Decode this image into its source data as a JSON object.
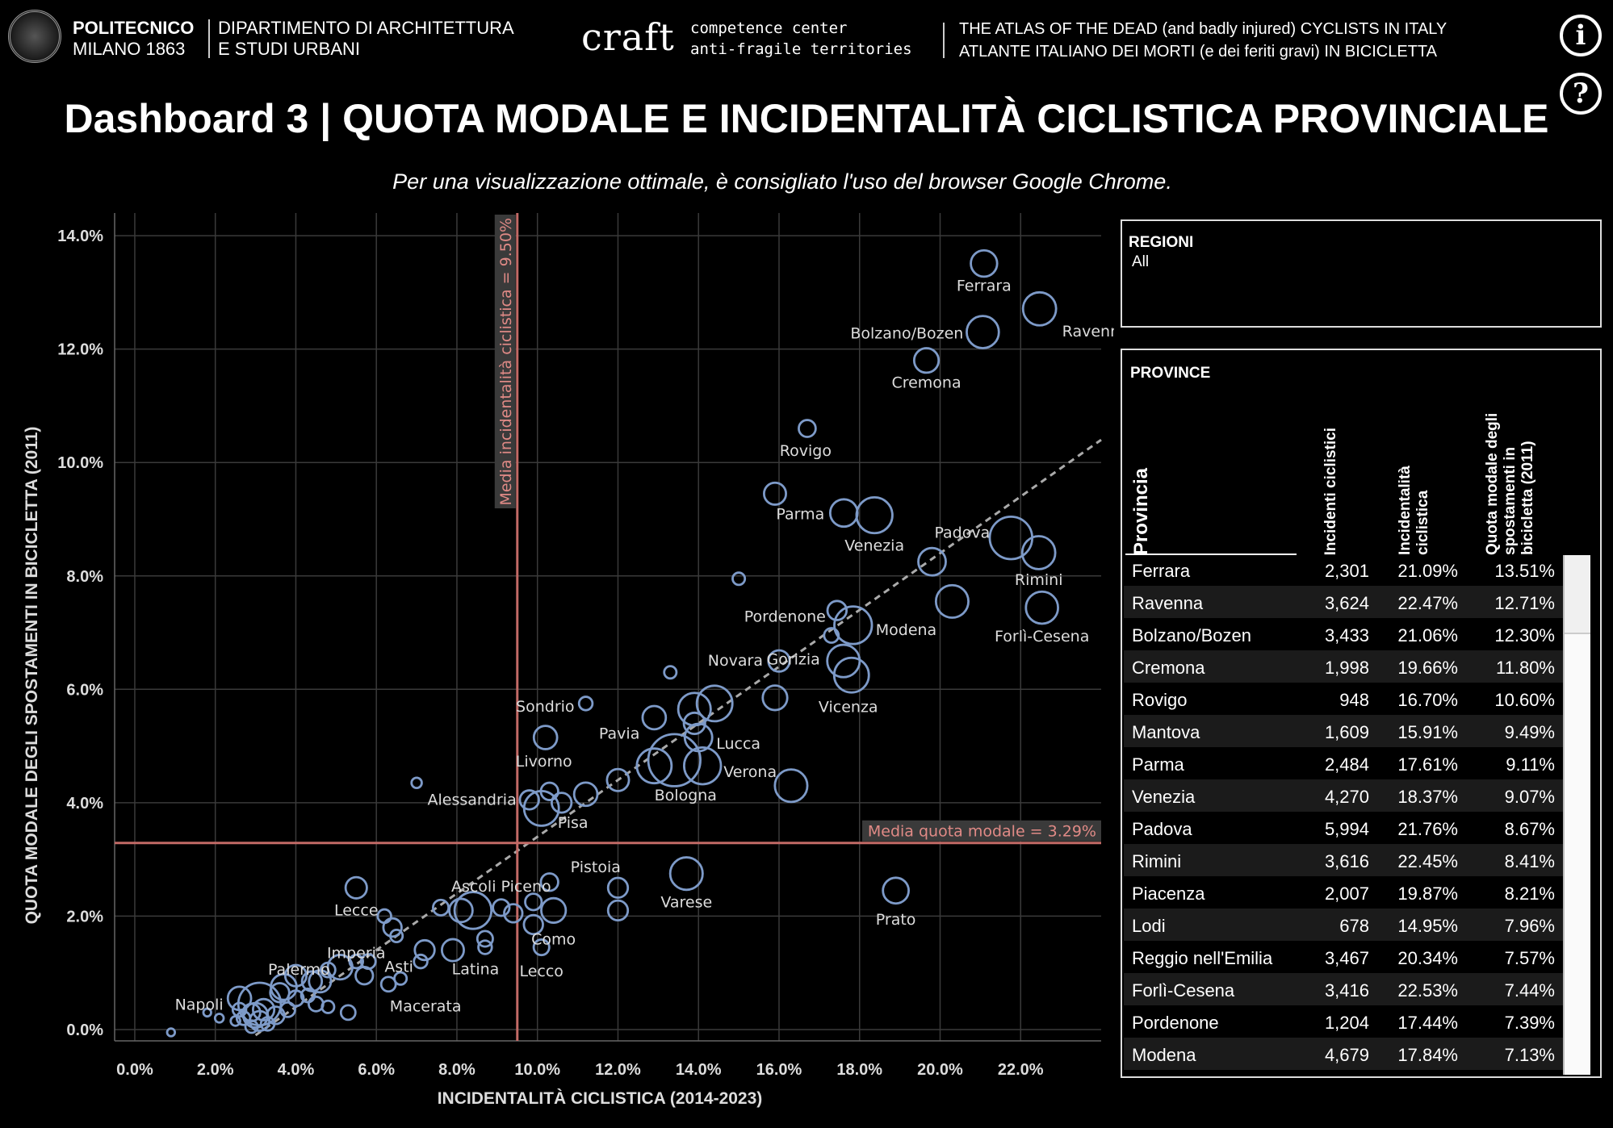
{
  "header": {
    "polimi_line1": "POLITECNICO",
    "polimi_line2": "MILANO 1863",
    "dept_line1": "DIPARTIMENTO DI ARCHITETTURA",
    "dept_line2": "E STUDI URBANI",
    "craft": "craft",
    "cc_line1": "competence center",
    "cc_line2": "anti-fragile territories",
    "atlas_line1": "THE ATLAS OF THE DEAD (and badly injured) CYCLISTS IN ITALY",
    "atlas_line2": "ATLANTE ITALIANO DEI MORTI (e dei feriti gravi) IN BICICLETTA",
    "info_glyph": "i",
    "help_glyph": "?"
  },
  "title": "Dashboard 3 | QUOTA MODALE E INCIDENTALITÀ CICLISTICA PROVINCIALE",
  "subtitle": "Per una visualizzazione ottimale, è consigliato l'uso del browser Google Chrome.",
  "chart_data": {
    "type": "scatter",
    "xlabel": "INCIDENTALITÀ CICLISTICA (2014-2023)",
    "ylabel": "QUOTA MODALE DEGLI SPOSTAMENTI IN BICICLETTA (2011)",
    "xlim": [
      -0.5,
      24
    ],
    "ylim": [
      -0.2,
      14.4
    ],
    "xticks": [
      "0.0%",
      "2.0%",
      "4.0%",
      "6.0%",
      "8.0%",
      "10.0%",
      "12.0%",
      "14.0%",
      "16.0%",
      "18.0%",
      "20.0%",
      "22.0%"
    ],
    "yticks": [
      "0.0%",
      "2.0%",
      "4.0%",
      "6.0%",
      "8.0%",
      "10.0%",
      "12.0%",
      "14.0%"
    ],
    "grid": true,
    "ref_x": {
      "value": 9.5,
      "label": "Media incidentalità ciclistica = 9.50%"
    },
    "ref_y": {
      "value": 3.29,
      "label": "Media quota modale = 3.29%"
    },
    "trend": {
      "x": [
        3.0,
        24.0
      ],
      "y": [
        -0.1,
        10.4
      ]
    },
    "labeled_points": [
      {
        "name": "Ferrara",
        "x": 21.09,
        "y": 13.51,
        "size": 2301
      },
      {
        "name": "Ravenna",
        "x": 22.47,
        "y": 12.71,
        "size": 3624
      },
      {
        "name": "Bolzano/Bozen",
        "x": 21.06,
        "y": 12.3,
        "size": 3433
      },
      {
        "name": "Cremona",
        "x": 19.66,
        "y": 11.8,
        "size": 1998
      },
      {
        "name": "Rovigo",
        "x": 16.7,
        "y": 10.6,
        "size": 948
      },
      {
        "name": "Parma",
        "x": 17.61,
        "y": 9.11,
        "size": 2484
      },
      {
        "name": "Venezia",
        "x": 18.37,
        "y": 9.07,
        "size": 4270
      },
      {
        "name": "Padova",
        "x": 21.76,
        "y": 8.67,
        "size": 5994
      },
      {
        "name": "Rimini",
        "x": 22.45,
        "y": 8.41,
        "size": 3616
      },
      {
        "name": "Forlì-Cesena",
        "x": 22.53,
        "y": 7.44,
        "size": 3416
      },
      {
        "name": "Pordenone",
        "x": 17.44,
        "y": 7.39,
        "size": 1204
      },
      {
        "name": "Modena",
        "x": 17.84,
        "y": 7.13,
        "size": 4679
      },
      {
        "name": "Gorizia",
        "x": 17.3,
        "y": 6.95,
        "size": 700
      },
      {
        "name": "Novara",
        "x": 16.0,
        "y": 6.5,
        "size": 1500
      },
      {
        "name": "Vicenza",
        "x": 17.8,
        "y": 6.25,
        "size": 4000
      },
      {
        "name": "Sondrio",
        "x": 11.2,
        "y": 5.75,
        "size": 600
      },
      {
        "name": "Pavia",
        "x": 12.9,
        "y": 5.5,
        "size": 1800
      },
      {
        "name": "Lucca",
        "x": 14.0,
        "y": 5.15,
        "size": 2500
      },
      {
        "name": "Livorno",
        "x": 10.2,
        "y": 5.15,
        "size": 1800
      },
      {
        "name": "Verona",
        "x": 14.1,
        "y": 4.65,
        "size": 4500
      },
      {
        "name": "Bologna",
        "x": 13.4,
        "y": 4.75,
        "size": 9000
      },
      {
        "name": "Alessandria",
        "x": 9.8,
        "y": 4.05,
        "size": 1200
      },
      {
        "name": "Pisa",
        "x": 10.1,
        "y": 3.9,
        "size": 4000
      },
      {
        "name": "Pistoia",
        "x": 10.3,
        "y": 2.6,
        "size": 1000
      },
      {
        "name": "Varese",
        "x": 13.7,
        "y": 2.75,
        "size": 3500
      },
      {
        "name": "Prato",
        "x": 18.9,
        "y": 2.45,
        "size": 2200
      },
      {
        "name": "Ascoli Piceno",
        "x": 9.1,
        "y": 2.15,
        "size": 900
      },
      {
        "name": "Lecce",
        "x": 5.5,
        "y": 2.5,
        "size": 1500
      },
      {
        "name": "Como",
        "x": 10.4,
        "y": 2.1,
        "size": 2000
      },
      {
        "name": "Lecco",
        "x": 10.1,
        "y": 1.45,
        "size": 800
      },
      {
        "name": "Imperia",
        "x": 5.5,
        "y": 1.2,
        "size": 600
      },
      {
        "name": "Latina",
        "x": 7.9,
        "y": 1.4,
        "size": 1600
      },
      {
        "name": "Asti",
        "x": 6.6,
        "y": 0.9,
        "size": 500
      },
      {
        "name": "Palermo",
        "x": 4.6,
        "y": 0.85,
        "size": 1600
      },
      {
        "name": "Macerata",
        "x": 6.3,
        "y": 0.8,
        "size": 700
      },
      {
        "name": "Napoli",
        "x": 2.6,
        "y": 0.55,
        "size": 1800
      }
    ],
    "other_points": [
      {
        "x": 15.0,
        "y": 7.95,
        "size": 500
      },
      {
        "x": 13.3,
        "y": 6.3,
        "size": 500
      },
      {
        "x": 15.9,
        "y": 9.45,
        "size": 1600
      },
      {
        "x": 19.8,
        "y": 8.25,
        "size": 2500
      },
      {
        "x": 20.3,
        "y": 7.55,
        "size": 3500
      },
      {
        "x": 17.6,
        "y": 6.5,
        "size": 3500
      },
      {
        "x": 15.9,
        "y": 5.85,
        "size": 2000
      },
      {
        "x": 13.9,
        "y": 5.65,
        "size": 3500
      },
      {
        "x": 14.4,
        "y": 5.75,
        "size": 4200
      },
      {
        "x": 13.9,
        "y": 5.4,
        "size": 1500
      },
      {
        "x": 12.9,
        "y": 4.65,
        "size": 4000
      },
      {
        "x": 16.3,
        "y": 4.3,
        "size": 3500
      },
      {
        "x": 12.0,
        "y": 4.4,
        "size": 1600
      },
      {
        "x": 11.2,
        "y": 4.15,
        "size": 1800
      },
      {
        "x": 10.6,
        "y": 4.0,
        "size": 1300
      },
      {
        "x": 10.3,
        "y": 4.2,
        "size": 1000
      },
      {
        "x": 7.0,
        "y": 4.35,
        "size": 350
      },
      {
        "x": 12.0,
        "y": 2.5,
        "size": 1300
      },
      {
        "x": 12.0,
        "y": 2.1,
        "size": 1300
      },
      {
        "x": 9.4,
        "y": 2.05,
        "size": 1100
      },
      {
        "x": 9.9,
        "y": 2.25,
        "size": 900
      },
      {
        "x": 9.9,
        "y": 1.85,
        "size": 1200
      },
      {
        "x": 8.4,
        "y": 2.1,
        "size": 4500
      },
      {
        "x": 8.1,
        "y": 2.1,
        "size": 1800
      },
      {
        "x": 7.6,
        "y": 2.15,
        "size": 800
      },
      {
        "x": 8.7,
        "y": 1.6,
        "size": 800
      },
      {
        "x": 8.7,
        "y": 1.45,
        "size": 600
      },
      {
        "x": 6.2,
        "y": 2.0,
        "size": 600
      },
      {
        "x": 6.4,
        "y": 1.8,
        "size": 1100
      },
      {
        "x": 6.5,
        "y": 1.65,
        "size": 500
      },
      {
        "x": 7.2,
        "y": 1.4,
        "size": 1300
      },
      {
        "x": 7.1,
        "y": 1.2,
        "size": 600
      },
      {
        "x": 5.8,
        "y": 1.2,
        "size": 700
      },
      {
        "x": 5.7,
        "y": 0.95,
        "size": 1000
      },
      {
        "x": 5.1,
        "y": 1.1,
        "size": 2000
      },
      {
        "x": 4.8,
        "y": 1.05,
        "size": 700
      },
      {
        "x": 4.4,
        "y": 0.85,
        "size": 1300
      },
      {
        "x": 4.0,
        "y": 0.95,
        "size": 1500
      },
      {
        "x": 3.7,
        "y": 0.75,
        "size": 2200
      },
      {
        "x": 3.6,
        "y": 0.65,
        "size": 1200
      },
      {
        "x": 4.0,
        "y": 0.55,
        "size": 800
      },
      {
        "x": 4.5,
        "y": 0.45,
        "size": 700
      },
      {
        "x": 4.3,
        "y": 0.6,
        "size": 600
      },
      {
        "x": 4.8,
        "y": 0.4,
        "size": 500
      },
      {
        "x": 3.8,
        "y": 0.35,
        "size": 700
      },
      {
        "x": 5.3,
        "y": 0.3,
        "size": 700
      },
      {
        "x": 3.1,
        "y": 0.45,
        "size": 6000
      },
      {
        "x": 3.0,
        "y": 0.25,
        "size": 2000
      },
      {
        "x": 3.1,
        "y": 0.15,
        "size": 1300
      },
      {
        "x": 3.5,
        "y": 0.25,
        "size": 1000
      },
      {
        "x": 3.3,
        "y": 0.1,
        "size": 600
      },
      {
        "x": 2.9,
        "y": 0.05,
        "size": 500
      },
      {
        "x": 2.7,
        "y": 0.2,
        "size": 600
      },
      {
        "x": 2.6,
        "y": 0.35,
        "size": 600
      },
      {
        "x": 2.5,
        "y": 0.15,
        "size": 300
      },
      {
        "x": 2.1,
        "y": 0.2,
        "size": 250
      },
      {
        "x": 1.8,
        "y": 0.3,
        "size": 200
      },
      {
        "x": 0.9,
        "y": -0.05,
        "size": 200
      },
      {
        "x": 3.2,
        "y": 0.35,
        "size": 1500
      },
      {
        "x": 2.9,
        "y": 0.3,
        "size": 1000
      }
    ]
  },
  "regioni": {
    "title": "REGIONI",
    "value": "All"
  },
  "province": {
    "title": "PROVINCE",
    "headers": [
      "Provincia",
      "Incidenti ciclistici",
      "Incidentalità ciclistica",
      "Quota modale degli spostamenti in bicicletta (2011)"
    ],
    "rows": [
      [
        "Ferrara",
        "2,301",
        "21.09%",
        "13.51%"
      ],
      [
        "Ravenna",
        "3,624",
        "22.47%",
        "12.71%"
      ],
      [
        "Bolzano/Bozen",
        "3,433",
        "21.06%",
        "12.30%"
      ],
      [
        "Cremona",
        "1,998",
        "19.66%",
        "11.80%"
      ],
      [
        "Rovigo",
        "948",
        "16.70%",
        "10.60%"
      ],
      [
        "Mantova",
        "1,609",
        "15.91%",
        "9.49%"
      ],
      [
        "Parma",
        "2,484",
        "17.61%",
        "9.11%"
      ],
      [
        "Venezia",
        "4,270",
        "18.37%",
        "9.07%"
      ],
      [
        "Padova",
        "5,994",
        "21.76%",
        "8.67%"
      ],
      [
        "Rimini",
        "3,616",
        "22.45%",
        "8.41%"
      ],
      [
        "Piacenza",
        "2,007",
        "19.87%",
        "8.21%"
      ],
      [
        "Lodi",
        "678",
        "14.95%",
        "7.96%"
      ],
      [
        "Reggio nell'Emilia",
        "3,467",
        "20.34%",
        "7.57%"
      ],
      [
        "Forlì-Cesena",
        "3,416",
        "22.53%",
        "7.44%"
      ],
      [
        "Pordenone",
        "1,204",
        "17.44%",
        "7.39%"
      ],
      [
        "Modena",
        "4,679",
        "17.84%",
        "7.13%"
      ]
    ]
  },
  "colors": {
    "point": "#7d9ac8",
    "ref_line": "#c26a66",
    "grid": "#3a3a3a",
    "trend": "#aaaaaa"
  }
}
